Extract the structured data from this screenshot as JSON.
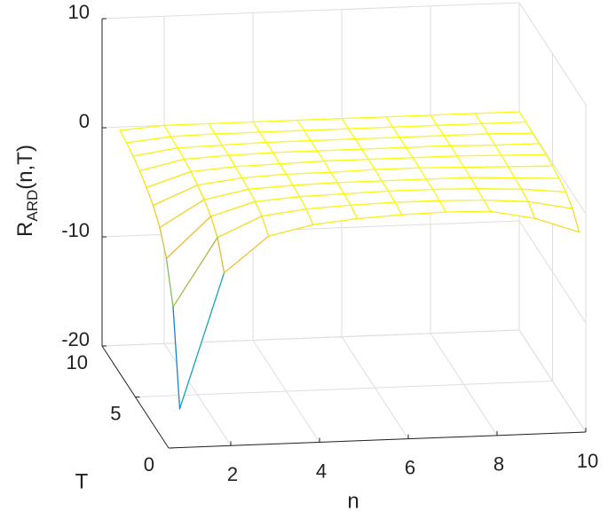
{
  "chart_data": {
    "type": "mesh",
    "xlabel": "n",
    "ylabel": "T",
    "zlabel": [
      "R",
      "ARD",
      "(n,T)"
    ],
    "x": [
      1,
      2,
      3,
      4,
      5,
      6,
      7,
      8,
      9,
      10
    ],
    "y": [
      1,
      2,
      3,
      4,
      5,
      6,
      7,
      8,
      9,
      10
    ],
    "z": [
      [
        -17.4,
        -5.1,
        -1.9,
        -1.0,
        -0.6,
        -0.4,
        -0.3,
        -0.4,
        -1.2,
        -2.6
      ],
      [
        -9.0,
        -2.8,
        -1.0,
        -0.5,
        -0.3,
        -0.2,
        -0.2,
        -0.3,
        -0.6,
        -1.4
      ],
      [
        -5.5,
        -1.8,
        -0.6,
        -0.3,
        -0.2,
        -0.1,
        -0.1,
        -0.2,
        -0.4,
        -0.8
      ],
      [
        -3.6,
        -1.2,
        -0.4,
        -0.2,
        -0.1,
        -0.1,
        -0.1,
        -0.1,
        -0.3,
        -0.5
      ],
      [
        -2.5,
        -0.8,
        -0.3,
        -0.1,
        -0.1,
        0,
        0,
        -0.1,
        -0.2,
        -0.3
      ],
      [
        -1.8,
        -0.5,
        -0.2,
        -0.1,
        0,
        0,
        0,
        0,
        -0.1,
        -0.2
      ],
      [
        -1.2,
        -0.3,
        -0.1,
        0,
        0,
        0,
        0,
        0,
        -0.1,
        -0.1
      ],
      [
        -0.8,
        -0.2,
        -0.1,
        0,
        0,
        0,
        0,
        0,
        0,
        -0.1
      ],
      [
        -0.5,
        -0.1,
        0,
        0,
        0,
        0,
        0,
        0,
        0,
        0
      ],
      [
        -0.3,
        0,
        0,
        0,
        0,
        0,
        0,
        0,
        0,
        0
      ]
    ],
    "xlim": [
      0.6,
      10
    ],
    "xticks": [
      2,
      4,
      6,
      8,
      10
    ],
    "ylim": [
      0,
      10
    ],
    "yticks": [
      0,
      5,
      10
    ],
    "zlim": [
      -20,
      10
    ],
    "zticks": [
      -20,
      -10,
      0,
      10
    ],
    "grid": true,
    "colormap": "parula"
  }
}
